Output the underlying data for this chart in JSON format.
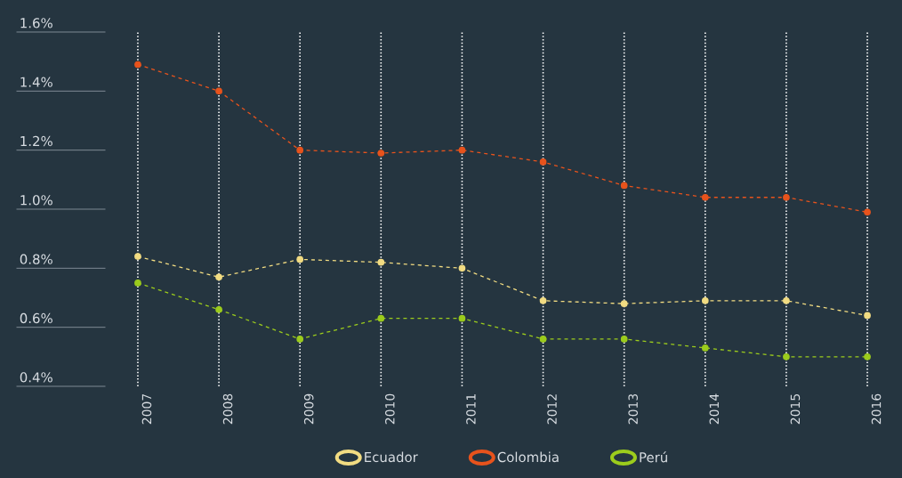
{
  "chart_data": {
    "type": "line",
    "categories": [
      "2007",
      "2008",
      "2009",
      "2010",
      "2011",
      "2012",
      "2013",
      "2014",
      "2015",
      "2016"
    ],
    "series": [
      {
        "name": "Ecuador",
        "color": "#f2dc82",
        "values": [
          0.84,
          0.77,
          0.83,
          0.82,
          0.8,
          0.69,
          0.68,
          0.69,
          0.69,
          0.64
        ]
      },
      {
        "name": "Colombia",
        "color": "#e8531c",
        "values": [
          1.49,
          1.4,
          1.2,
          1.19,
          1.2,
          1.16,
          1.08,
          1.04,
          1.04,
          0.99
        ]
      },
      {
        "name": "Perú",
        "color": "#9ccc1c",
        "values": [
          0.75,
          0.66,
          0.56,
          0.63,
          0.63,
          0.56,
          0.56,
          0.53,
          0.5,
          0.5
        ]
      }
    ],
    "ylim": [
      0.4,
      1.6
    ],
    "yticks": [
      {
        "value": 0.4,
        "label": "0.4%"
      },
      {
        "value": 0.6,
        "label": "0.6%"
      },
      {
        "value": 0.8,
        "label": "0.8%"
      },
      {
        "value": 1.0,
        "label": "1.0%"
      },
      {
        "value": 1.2,
        "label": "1.2%"
      },
      {
        "value": 1.4,
        "label": "1.4%"
      },
      {
        "value": 1.6,
        "label": "1.6%"
      }
    ],
    "grid": "x",
    "legend": "bottom",
    "marker": "circle",
    "line_style": "dashed"
  }
}
